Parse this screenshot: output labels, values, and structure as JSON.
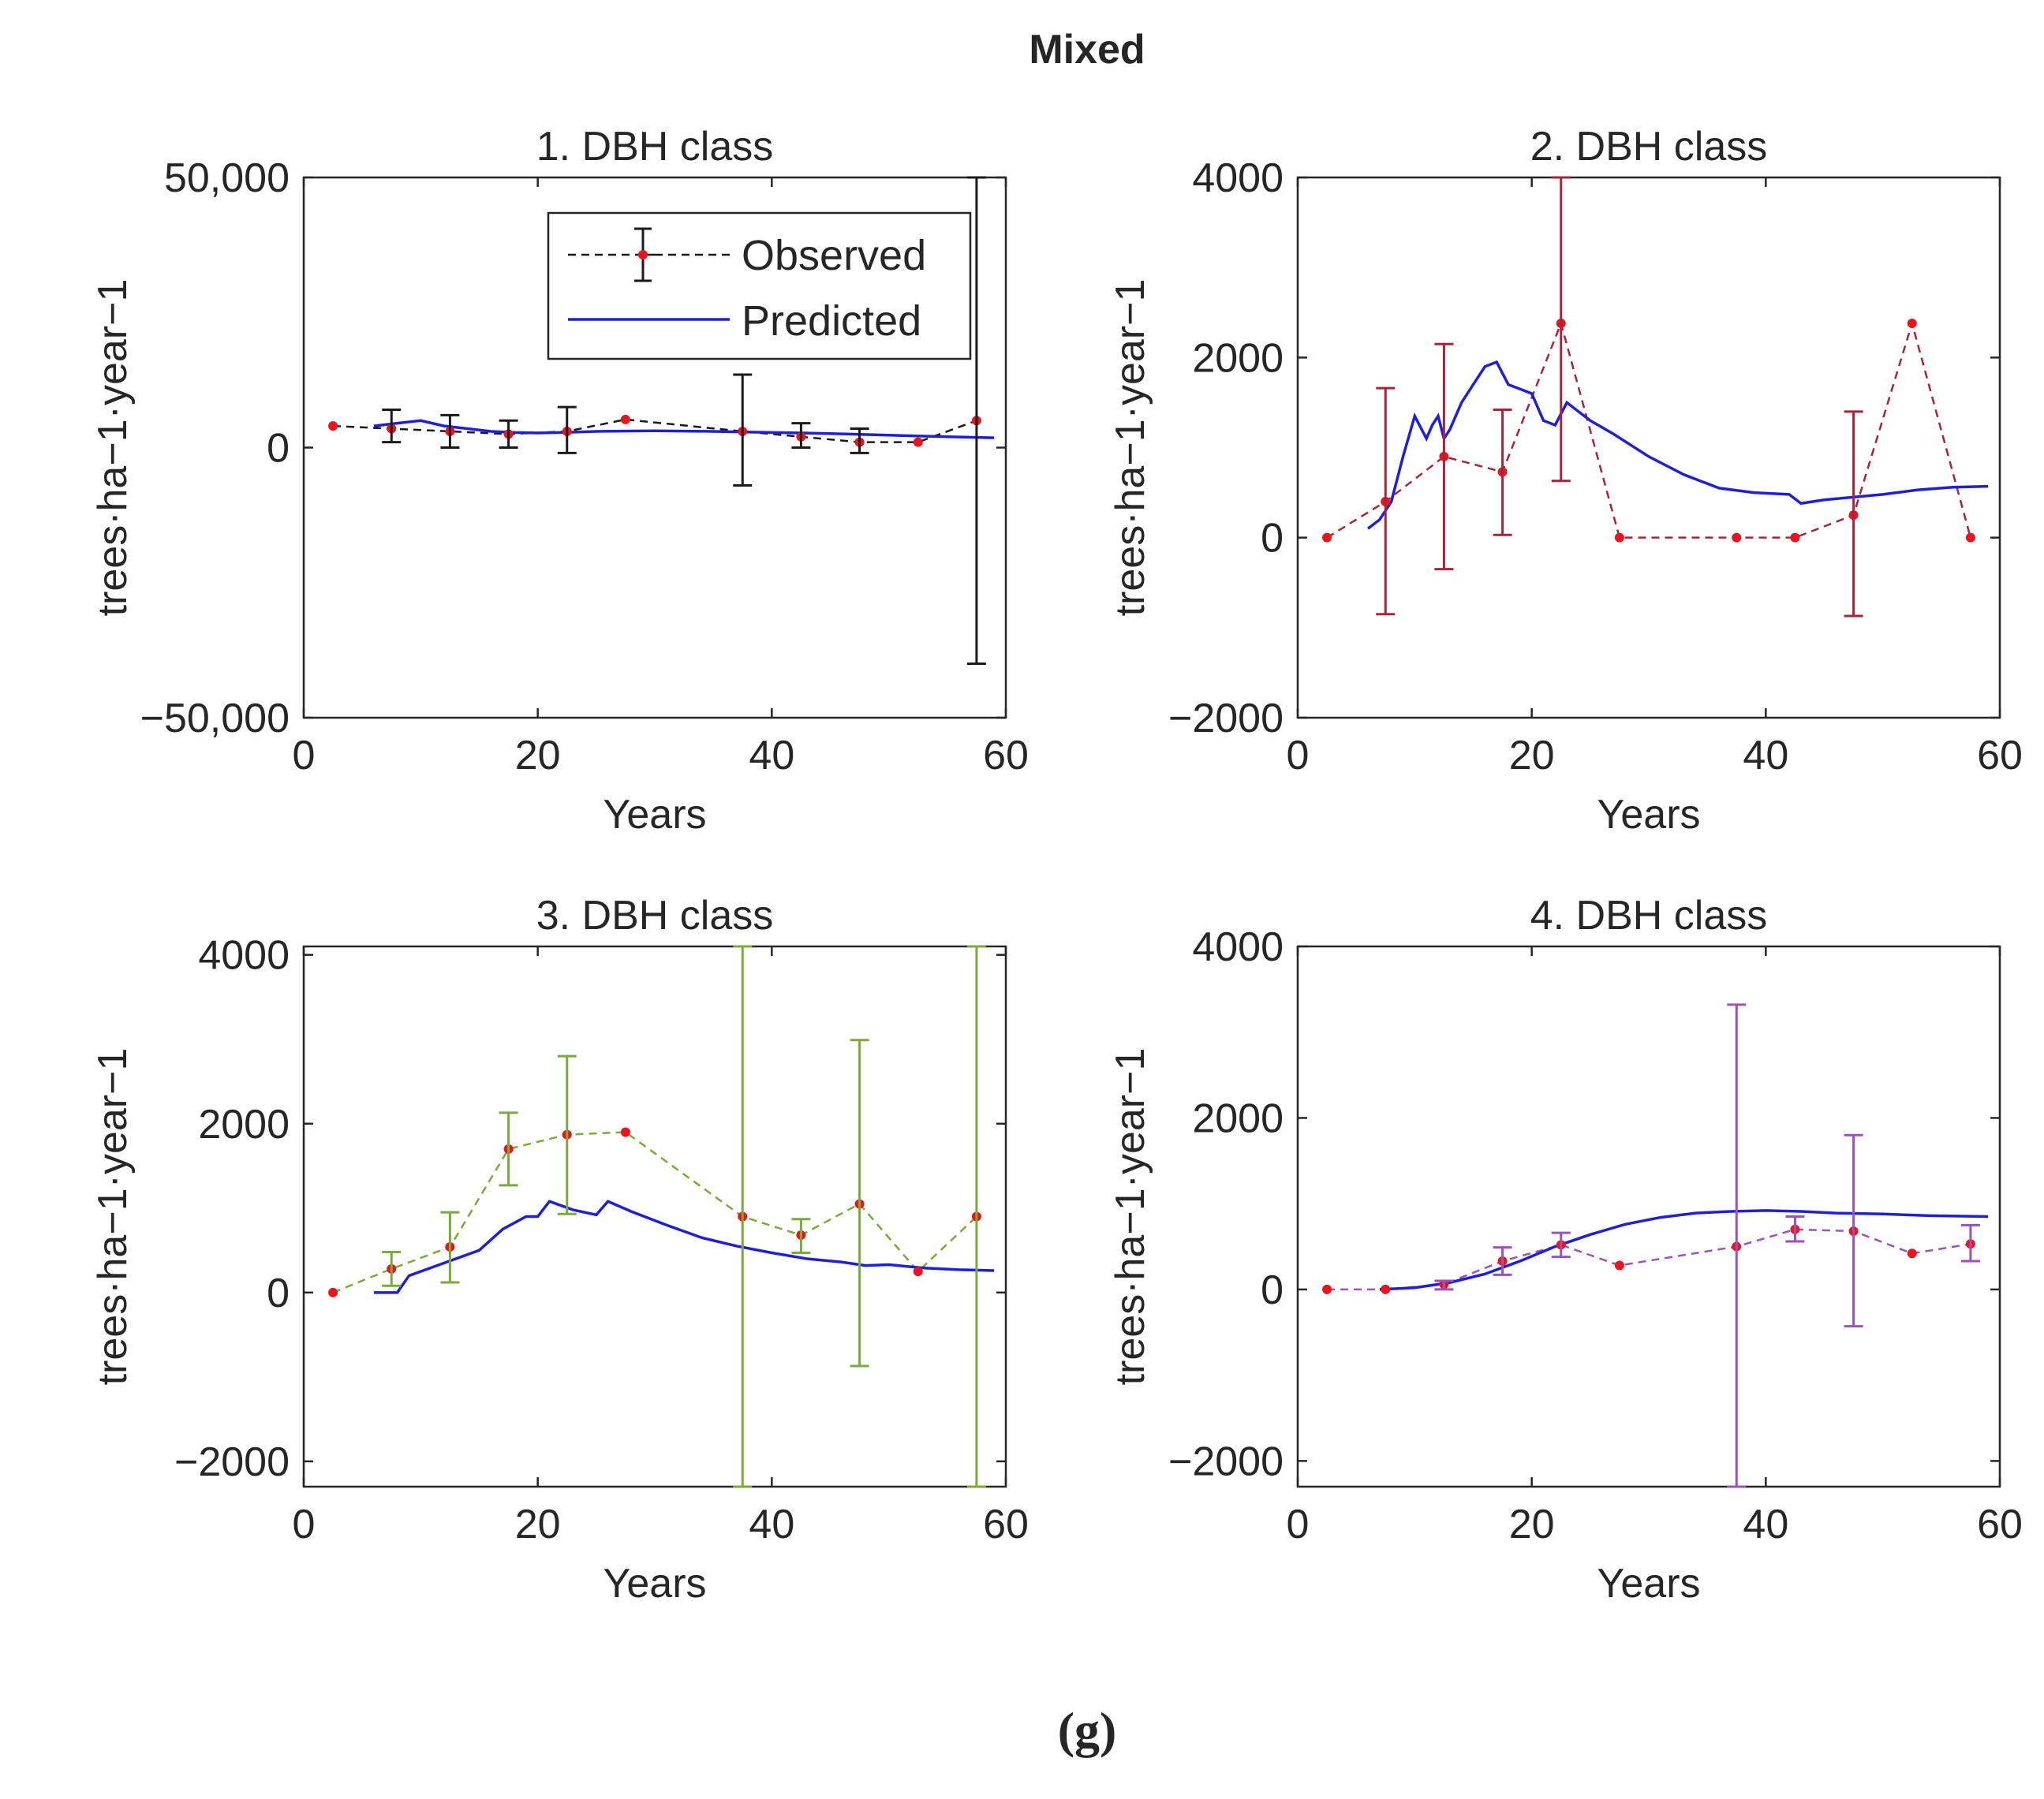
{
  "figure": {
    "title": "Mixed",
    "caption": "(g)"
  },
  "legend": {
    "observed": "Observed",
    "predicted": "Predicted"
  },
  "colors": {
    "predicted": "#1f1fd6",
    "observed_dot": "#e8141e",
    "axis": "#262626"
  },
  "chart_data": [
    {
      "type": "line",
      "title": "1. DBH class",
      "xlabel": "Years",
      "ylabel": "trees·ha−1·year−1",
      "xlim": [
        0,
        60
      ],
      "ylim": [
        -50000,
        50000
      ],
      "xticks": [
        0,
        20,
        40,
        60
      ],
      "yticks": [
        -50000,
        0,
        50000
      ],
      "ytick_labels": [
        "−50,000",
        "0",
        "50,000"
      ],
      "xtick_labels": [
        "0",
        "20",
        "40",
        "60"
      ],
      "obs_color": "#1a1a1a",
      "legend": "inside-top-right",
      "series": [
        {
          "name": "Observed",
          "x": [
            2.5,
            7.5,
            12.5,
            17.5,
            22.5,
            27.5,
            37.5,
            42.5,
            47.5,
            52.5,
            57.5
          ],
          "y": [
            4000,
            3500,
            3000,
            2500,
            3000,
            5200,
            3000,
            2000,
            1000,
            1000,
            5000
          ],
          "err_low": [
            null,
            1000,
            0,
            0,
            -1000,
            null,
            -7000,
            0,
            -1000,
            null,
            -40000
          ],
          "err_high": [
            null,
            7000,
            6000,
            5000,
            7500,
            null,
            13500,
            4500,
            3500,
            null,
            50000
          ]
        },
        {
          "name": "Predicted",
          "x": [
            6,
            8,
            10,
            12,
            14,
            16,
            18,
            20,
            22,
            25,
            30,
            35,
            40,
            45,
            50,
            55,
            59
          ],
          "y": [
            4000,
            4500,
            5000,
            4000,
            3500,
            3000,
            2800,
            2700,
            2800,
            3000,
            3100,
            3000,
            2800,
            2600,
            2300,
            2000,
            1800
          ]
        }
      ]
    },
    {
      "type": "line",
      "title": "2. DBH class",
      "xlabel": "Years",
      "ylabel": "trees·ha−1·year−1",
      "xlim": [
        0,
        60
      ],
      "ylim": [
        -2000,
        4000
      ],
      "xticks": [
        0,
        20,
        40,
        60
      ],
      "yticks": [
        -2000,
        0,
        2000,
        4000
      ],
      "ytick_labels": [
        "−2000",
        "0",
        "2000",
        "4000"
      ],
      "xtick_labels": [
        "0",
        "20",
        "40",
        "60"
      ],
      "obs_color": "#a8243a",
      "series": [
        {
          "name": "Observed",
          "x": [
            2.5,
            7.5,
            12.5,
            17.5,
            22.5,
            27.5,
            37.5,
            42.5,
            47.5,
            52.5,
            57.5
          ],
          "y": [
            0,
            400,
            900,
            730,
            2380,
            0,
            0,
            0,
            250,
            2380,
            0
          ],
          "err_low": [
            null,
            -850,
            -350,
            30,
            630,
            null,
            null,
            null,
            -870,
            null,
            null
          ],
          "err_high": [
            null,
            1660,
            2150,
            1420,
            4100,
            null,
            null,
            null,
            1400,
            null,
            null
          ]
        },
        {
          "name": "Predicted",
          "x": [
            6,
            7,
            8,
            9,
            10,
            11,
            11.5,
            12,
            12.5,
            13,
            14,
            15,
            16,
            17,
            18,
            19,
            20,
            21,
            22,
            23,
            24,
            25,
            27,
            30,
            33,
            36,
            39,
            42,
            43,
            45,
            50,
            53,
            56,
            59
          ],
          "y": [
            100,
            200,
            400,
            900,
            1350,
            1100,
            1250,
            1350,
            1100,
            1200,
            1500,
            1700,
            1900,
            1950,
            1700,
            1650,
            1600,
            1300,
            1250,
            1500,
            1400,
            1300,
            1150,
            900,
            700,
            550,
            500,
            480,
            380,
            420,
            480,
            530,
            560,
            570
          ]
        }
      ]
    },
    {
      "type": "line",
      "title": "3. DBH class",
      "xlabel": "Years",
      "ylabel": "trees·ha−1·year−1",
      "xlim": [
        0,
        60
      ],
      "ylim": [
        -2300,
        4100
      ],
      "xticks": [
        0,
        20,
        40,
        60
      ],
      "yticks": [
        -2000,
        0,
        2000,
        4000
      ],
      "ytick_labels": [
        "−2000",
        "0",
        "2000",
        "4000"
      ],
      "xtick_labels": [
        "0",
        "20",
        "40",
        "60"
      ],
      "obs_color": "#7aab3a",
      "series": [
        {
          "name": "Observed",
          "x": [
            2.5,
            7.5,
            12.5,
            17.5,
            22.5,
            27.5,
            37.5,
            42.5,
            47.5,
            52.5,
            57.5
          ],
          "y": [
            0,
            280,
            540,
            1700,
            1870,
            1900,
            900,
            680,
            1050,
            250,
            900
          ],
          "err_low": [
            null,
            80,
            120,
            1270,
            930,
            null,
            -2300,
            470,
            -870,
            null,
            -2300
          ],
          "err_high": [
            null,
            480,
            950,
            2130,
            2800,
            null,
            4100,
            870,
            2990,
            null,
            4100
          ]
        },
        {
          "name": "Predicted",
          "x": [
            6,
            8,
            9,
            11,
            13,
            15,
            17,
            19,
            20,
            21,
            23,
            25,
            26,
            28,
            31,
            34,
            37,
            40,
            43,
            46,
            48,
            50,
            53,
            56,
            59
          ],
          "y": [
            0,
            0,
            200,
            300,
            400,
            500,
            750,
            900,
            900,
            1080,
            980,
            920,
            1080,
            960,
            800,
            650,
            550,
            470,
            400,
            360,
            320,
            330,
            290,
            270,
            260
          ]
        }
      ]
    },
    {
      "type": "line",
      "title": "4. DBH class",
      "xlabel": "Years",
      "ylabel": "trees·ha−1·year−1",
      "xlim": [
        0,
        60
      ],
      "ylim": [
        -2300,
        4000
      ],
      "xticks": [
        0,
        20,
        40,
        60
      ],
      "yticks": [
        -2000,
        0,
        2000,
        4000
      ],
      "ytick_labels": [
        "−2000",
        "0",
        "2000",
        "4000"
      ],
      "xtick_labels": [
        "0",
        "20",
        "40",
        "60"
      ],
      "obs_color": "#9c52b8",
      "series": [
        {
          "name": "Observed",
          "x": [
            2.5,
            7.5,
            12.5,
            17.5,
            22.5,
            27.5,
            37.5,
            42.5,
            47.5,
            52.5,
            57.5
          ],
          "y": [
            0,
            0,
            60,
            330,
            520,
            280,
            500,
            700,
            680,
            420,
            530
          ],
          "err_low": [
            null,
            null,
            0,
            170,
            380,
            null,
            -2300,
            560,
            -430,
            null,
            330
          ],
          "err_high": [
            null,
            null,
            100,
            490,
            660,
            null,
            3320,
            850,
            1800,
            null,
            750
          ]
        },
        {
          "name": "Predicted",
          "x": [
            7,
            10,
            13,
            16,
            19,
            22,
            25,
            28,
            31,
            34,
            37,
            40,
            43,
            46,
            50,
            54,
            59
          ],
          "y": [
            0,
            20,
            80,
            180,
            330,
            500,
            640,
            760,
            840,
            890,
            910,
            920,
            910,
            890,
            880,
            860,
            850
          ]
        }
      ]
    }
  ]
}
